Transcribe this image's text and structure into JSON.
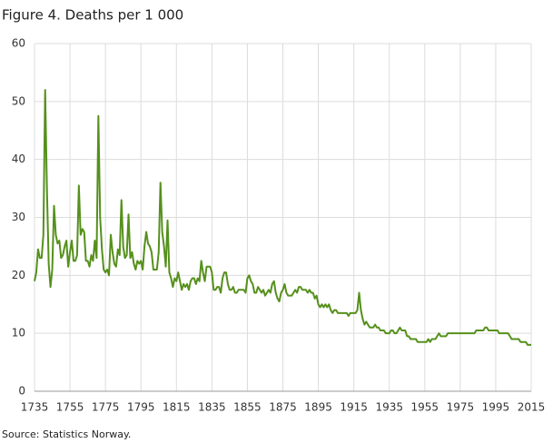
{
  "chart_data": {
    "type": "line",
    "title": "Figure 4. Deaths per 1 000",
    "source": "Source: Statistics Norway.",
    "x": [
      1735,
      1736,
      1737,
      1738,
      1739,
      1740,
      1741,
      1742,
      1743,
      1744,
      1745,
      1746,
      1747,
      1748,
      1749,
      1750,
      1751,
      1752,
      1753,
      1754,
      1755,
      1756,
      1757,
      1758,
      1759,
      1760,
      1761,
      1762,
      1763,
      1764,
      1765,
      1766,
      1767,
      1768,
      1769,
      1770,
      1771,
      1772,
      1773,
      1774,
      1775,
      1776,
      1777,
      1778,
      1779,
      1780,
      1781,
      1782,
      1783,
      1784,
      1785,
      1786,
      1787,
      1788,
      1789,
      1790,
      1791,
      1792,
      1793,
      1794,
      1795,
      1796,
      1797,
      1798,
      1799,
      1800,
      1801,
      1802,
      1803,
      1804,
      1805,
      1806,
      1807,
      1808,
      1809,
      1810,
      1811,
      1812,
      1813,
      1814,
      1815,
      1816,
      1817,
      1818,
      1819,
      1820,
      1821,
      1822,
      1823,
      1824,
      1825,
      1826,
      1827,
      1828,
      1829,
      1830,
      1831,
      1832,
      1833,
      1834,
      1835,
      1836,
      1837,
      1838,
      1839,
      1840,
      1841,
      1842,
      1843,
      1844,
      1845,
      1846,
      1847,
      1848,
      1849,
      1850,
      1851,
      1852,
      1853,
      1854,
      1855,
      1856,
      1857,
      1858,
      1859,
      1860,
      1861,
      1862,
      1863,
      1864,
      1865,
      1866,
      1867,
      1868,
      1869,
      1870,
      1871,
      1872,
      1873,
      1874,
      1875,
      1876,
      1877,
      1878,
      1879,
      1880,
      1881,
      1882,
      1883,
      1884,
      1885,
      1886,
      1887,
      1888,
      1889,
      1890,
      1891,
      1892,
      1893,
      1894,
      1895,
      1896,
      1897,
      1898,
      1899,
      1900,
      1901,
      1902,
      1903,
      1904,
      1905,
      1906,
      1907,
      1908,
      1909,
      1910,
      1911,
      1912,
      1913,
      1914,
      1915,
      1916,
      1917,
      1918,
      1919,
      1920,
      1921,
      1922,
      1923,
      1924,
      1925,
      1926,
      1927,
      1928,
      1929,
      1930,
      1931,
      1932,
      1933,
      1934,
      1935,
      1936,
      1937,
      1938,
      1939,
      1940,
      1941,
      1942,
      1943,
      1944,
      1945,
      1946,
      1947,
      1948,
      1949,
      1950,
      1951,
      1952,
      1953,
      1954,
      1955,
      1956,
      1957,
      1958,
      1959,
      1960,
      1961,
      1962,
      1963,
      1964,
      1965,
      1966,
      1967,
      1968,
      1969,
      1970,
      1971,
      1972,
      1973,
      1974,
      1975,
      1976,
      1977,
      1978,
      1979,
      1980,
      1981,
      1982,
      1983,
      1984,
      1985,
      1986,
      1987,
      1988,
      1989,
      1990,
      1991,
      1992,
      1993,
      1994,
      1995,
      1996,
      1997,
      1998,
      1999,
      2000,
      2001,
      2002,
      2003,
      2004,
      2005,
      2006,
      2007,
      2008,
      2009,
      2010,
      2011,
      2012,
      2013,
      2014,
      2015
    ],
    "series": [
      {
        "name": "Deaths per 1 000",
        "color": "#55901c",
        "values": [
          19,
          20.5,
          24.5,
          23,
          23,
          27,
          52,
          35,
          22,
          18,
          21,
          32,
          27,
          25.5,
          26,
          23,
          23.5,
          25,
          26,
          21.5,
          24,
          26,
          22.5,
          22.5,
          23.5,
          35.5,
          27,
          28,
          27.5,
          22.5,
          22.5,
          21.5,
          23.5,
          22.5,
          26,
          23,
          47.5,
          30,
          24.5,
          21,
          20.5,
          21,
          20,
          27,
          24,
          22,
          21.5,
          24.5,
          23.5,
          33,
          25,
          23,
          23.5,
          30.5,
          23,
          24,
          22,
          21,
          22.5,
          22,
          22.5,
          21,
          25,
          27.5,
          25.5,
          25,
          24,
          21,
          21,
          21,
          24,
          36,
          27.5,
          25,
          21.5,
          29.5,
          20.5,
          19.5,
          18,
          19.5,
          19,
          20.5,
          19,
          17.5,
          18.5,
          18,
          18.5,
          17.5,
          19,
          19.5,
          19.5,
          18.5,
          19.5,
          19,
          22.5,
          20.5,
          19,
          21.5,
          21.5,
          21.5,
          20.5,
          17.5,
          17.5,
          18,
          18,
          17,
          19.5,
          20.5,
          20.5,
          18.5,
          17.5,
          17.5,
          18,
          17,
          17,
          17.5,
          17.5,
          17.5,
          17.5,
          17,
          19.5,
          20,
          19,
          18.5,
          17,
          17,
          18,
          17.5,
          17,
          17.5,
          16.5,
          17,
          17.5,
          17,
          18.5,
          19,
          17,
          16,
          15.5,
          17,
          17.5,
          18.5,
          17,
          16.5,
          16.5,
          16.5,
          17,
          17.5,
          17,
          18,
          18,
          17.5,
          17.5,
          17.5,
          17,
          17.5,
          17,
          17,
          16,
          16.5,
          15,
          14.5,
          15,
          14.5,
          15,
          14.5,
          15,
          14,
          13.5,
          14,
          14,
          13.5,
          13.5,
          13.5,
          13.5,
          13.5,
          13.5,
          13,
          13.5,
          13.5,
          13.5,
          13.5,
          14,
          17,
          14,
          12.5,
          11.5,
          12,
          11.5,
          11,
          11,
          11,
          11.5,
          11,
          11,
          10.5,
          10.5,
          10.5,
          10,
          10,
          10,
          10.5,
          10.5,
          10,
          10,
          10.5,
          11,
          10.5,
          10.5,
          10.5,
          9.5,
          9.5,
          9,
          9,
          9,
          9,
          8.5,
          8.5,
          8.5,
          8.5,
          8.5,
          8.5,
          9,
          8.5,
          9,
          9,
          9,
          9.5,
          10,
          9.5,
          9.5,
          9.5,
          9.5,
          10,
          10,
          10,
          10,
          10,
          10,
          10,
          10,
          10,
          10,
          10,
          10,
          10,
          10,
          10,
          10,
          10.5,
          10.5,
          10.5,
          10.5,
          10.5,
          11,
          11,
          10.5,
          10.5,
          10.5,
          10.5,
          10.5,
          10.5,
          10,
          10,
          10,
          10,
          10,
          10,
          9.5,
          9,
          9,
          9,
          9,
          9,
          8.5,
          8.5,
          8.5,
          8.5,
          8,
          8,
          8
        ]
      }
    ],
    "xlim": [
      1735,
      2015
    ],
    "xticks": [
      1735,
      1755,
      1775,
      1795,
      1815,
      1835,
      1855,
      1875,
      1895,
      1915,
      1935,
      1955,
      1975,
      1995,
      2015
    ],
    "ylim": [
      0,
      60
    ],
    "yticks": [
      0,
      10,
      20,
      30,
      40,
      50,
      60
    ],
    "grid": true
  }
}
